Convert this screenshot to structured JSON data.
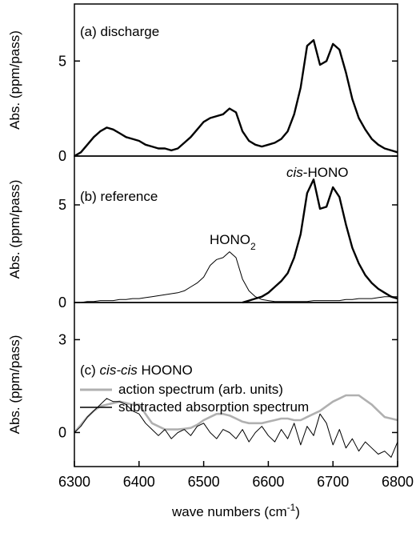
{
  "chart_data": [
    {
      "type": "line",
      "title": [
        {
          "text": "(a) discharge"
        }
      ],
      "ylabel": "Abs. (ppm/pass)",
      "x": [
        6300,
        6310,
        6320,
        6330,
        6340,
        6350,
        6360,
        6370,
        6380,
        6390,
        6400,
        6410,
        6420,
        6430,
        6440,
        6450,
        6460,
        6470,
        6480,
        6490,
        6500,
        6510,
        6520,
        6530,
        6540,
        6550,
        6560,
        6570,
        6580,
        6590,
        6600,
        6610,
        6620,
        6630,
        6640,
        6650,
        6660,
        6670,
        6680,
        6690,
        6700,
        6710,
        6720,
        6730,
        6740,
        6750,
        6760,
        6770,
        6780,
        6790,
        6800
      ],
      "xlim": [
        6300,
        6800
      ],
      "ylim": [
        0,
        8
      ],
      "yticks": [
        0,
        5
      ],
      "series": [
        {
          "color": "#000000",
          "width": 2.4,
          "values": [
            0.0,
            0.2,
            0.6,
            1.0,
            1.3,
            1.5,
            1.4,
            1.2,
            1.0,
            0.9,
            0.8,
            0.6,
            0.5,
            0.4,
            0.4,
            0.3,
            0.4,
            0.7,
            1.0,
            1.4,
            1.8,
            2.0,
            2.1,
            2.2,
            2.5,
            2.3,
            1.3,
            0.8,
            0.6,
            0.5,
            0.6,
            0.7,
            0.9,
            1.3,
            2.2,
            3.6,
            5.8,
            6.1,
            4.8,
            5.0,
            5.9,
            5.6,
            4.4,
            3.0,
            2.0,
            1.4,
            0.9,
            0.6,
            0.4,
            0.3,
            0.2
          ]
        }
      ]
    },
    {
      "type": "line",
      "title": [
        {
          "text": "(b) reference"
        }
      ],
      "ylabel": "Abs. (ppm/pass)",
      "x": [
        6300,
        6310,
        6320,
        6330,
        6340,
        6350,
        6360,
        6370,
        6380,
        6390,
        6400,
        6410,
        6420,
        6430,
        6440,
        6450,
        6460,
        6470,
        6480,
        6490,
        6500,
        6510,
        6520,
        6530,
        6540,
        6550,
        6560,
        6570,
        6580,
        6590,
        6600,
        6610,
        6620,
        6630,
        6640,
        6650,
        6660,
        6670,
        6680,
        6690,
        6700,
        6710,
        6720,
        6730,
        6740,
        6750,
        6760,
        6770,
        6780,
        6790,
        6800
      ],
      "xlim": [
        6300,
        6800
      ],
      "ylim": [
        0,
        7.5
      ],
      "yticks": [
        0,
        5
      ],
      "annotations": [
        [
          {
            "text": "HONO"
          },
          {
            "text": "2",
            "sub": true
          }
        ],
        [
          {
            "text": "cis",
            "italic": true
          },
          {
            "text": "-HONO"
          }
        ]
      ],
      "series": [
        {
          "color": "#000000",
          "width": 1,
          "values": [
            0.0,
            0.0,
            0.05,
            0.05,
            0.1,
            0.1,
            0.1,
            0.15,
            0.15,
            0.2,
            0.2,
            0.25,
            0.3,
            0.35,
            0.4,
            0.45,
            0.5,
            0.6,
            0.8,
            1.0,
            1.3,
            1.9,
            2.2,
            2.3,
            2.6,
            2.3,
            1.2,
            0.6,
            0.3,
            0.15,
            0.1,
            0.05,
            0.05,
            0.05,
            0.05,
            0.05,
            0.05,
            0.1,
            0.1,
            0.1,
            0.1,
            0.1,
            0.15,
            0.15,
            0.2,
            0.2,
            0.2,
            0.25,
            0.3,
            0.3,
            0.3
          ]
        },
        {
          "color": "#000000",
          "width": 2.4,
          "values": [
            null,
            null,
            null,
            null,
            null,
            null,
            null,
            null,
            null,
            null,
            null,
            null,
            null,
            null,
            null,
            null,
            null,
            null,
            null,
            null,
            null,
            null,
            null,
            null,
            null,
            null,
            0.0,
            0.1,
            0.2,
            0.3,
            0.5,
            0.8,
            1.1,
            1.5,
            2.3,
            3.5,
            5.6,
            6.3,
            4.8,
            4.9,
            5.9,
            5.4,
            4.0,
            2.8,
            2.0,
            1.4,
            1.0,
            0.7,
            0.5,
            0.3,
            0.2
          ]
        }
      ]
    },
    {
      "type": "line",
      "title": [
        {
          "text": "(c) "
        },
        {
          "text": "cis-cis",
          "italic": true
        },
        {
          "text": " HOONO"
        }
      ],
      "ylabel": "Abs. (ppm/pass)",
      "xlabel": [
        {
          "text": "wave numbers (cm"
        },
        {
          "text": "-1",
          "sup": true
        },
        {
          "text": ")"
        }
      ],
      "x": [
        6300,
        6310,
        6320,
        6330,
        6340,
        6350,
        6360,
        6370,
        6380,
        6390,
        6400,
        6410,
        6420,
        6430,
        6440,
        6450,
        6460,
        6470,
        6480,
        6490,
        6500,
        6510,
        6520,
        6530,
        6540,
        6550,
        6560,
        6570,
        6580,
        6590,
        6600,
        6610,
        6620,
        6630,
        6640,
        6650,
        6660,
        6670,
        6680,
        6690,
        6700,
        6710,
        6720,
        6730,
        6740,
        6750,
        6760,
        6770,
        6780,
        6790,
        6800
      ],
      "xlim": [
        6300,
        6800
      ],
      "ylim": [
        -1.1,
        4.2
      ],
      "yticks": [
        0,
        3
      ],
      "xticks": [
        6300,
        6400,
        6500,
        6600,
        6700,
        6800
      ],
      "series": [
        {
          "name": "action spectrum (arb. units)",
          "color": "#b0b0b0",
          "width": 2.6,
          "values": [
            0.0,
            0.25,
            0.5,
            0.7,
            0.85,
            0.9,
            0.95,
            1.0,
            0.95,
            0.9,
            0.9,
            0.6,
            0.3,
            0.2,
            0.1,
            0.1,
            0.1,
            0.12,
            0.15,
            0.25,
            0.4,
            0.5,
            0.6,
            0.6,
            0.55,
            0.45,
            0.35,
            0.3,
            0.3,
            0.3,
            0.35,
            0.4,
            0.45,
            0.45,
            0.4,
            0.4,
            0.5,
            0.6,
            0.7,
            0.85,
            1.0,
            1.1,
            1.2,
            1.2,
            1.2,
            1.05,
            0.9,
            0.7,
            0.5,
            0.45,
            0.4
          ]
        },
        {
          "name": "subtracted absorption spectrum",
          "color": "#000000",
          "width": 1,
          "values": [
            0.0,
            0.2,
            0.5,
            0.7,
            0.9,
            1.1,
            1.0,
            1.0,
            0.9,
            0.7,
            0.6,
            0.3,
            0.1,
            -0.1,
            0.1,
            -0.2,
            0.0,
            0.1,
            -0.1,
            0.2,
            0.3,
            0.0,
            -0.2,
            0.1,
            0.0,
            -0.2,
            0.1,
            -0.3,
            0.0,
            0.2,
            -0.1,
            -0.3,
            0.1,
            -0.2,
            0.3,
            -0.4,
            0.2,
            -0.1,
            0.6,
            0.3,
            -0.4,
            0.1,
            -0.5,
            -0.2,
            -0.6,
            -0.3,
            -0.5,
            -0.7,
            -0.6,
            -0.8,
            -0.3
          ]
        }
      ]
    }
  ]
}
